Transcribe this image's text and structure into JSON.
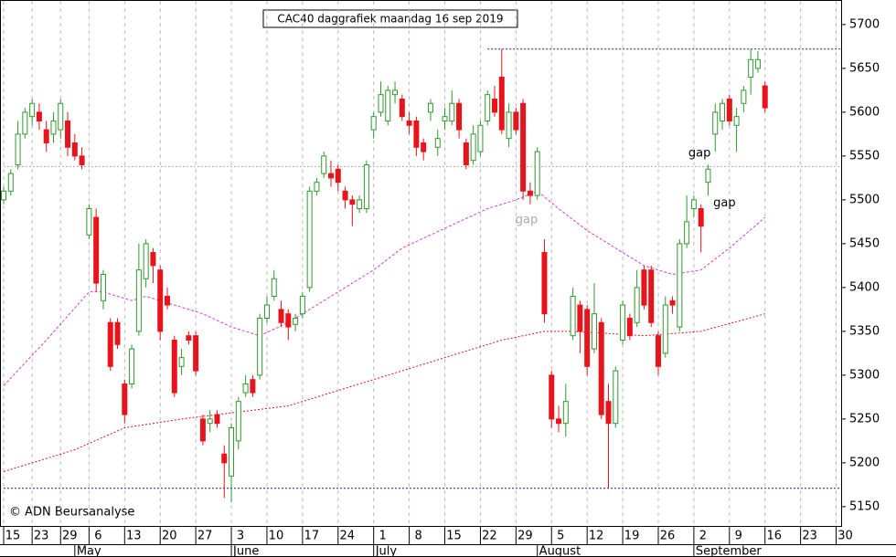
{
  "chart_data": {
    "type": "candlestick",
    "title": "CAC40 daggrafiek maandag 16 sep 2019",
    "credit": "© ADN Beursanalyse",
    "xlim": [
      0,
      117.7
    ],
    "ylim": [
      5128,
      5728
    ],
    "yticks": [
      5150,
      5200,
      5250,
      5300,
      5350,
      5400,
      5450,
      5500,
      5550,
      5600,
      5650,
      5700
    ],
    "xticks": [
      {
        "value": 0,
        "label": "15"
      },
      {
        "value": 4,
        "label": "23"
      },
      {
        "value": 8,
        "label": "29"
      },
      {
        "value": 12,
        "label": "6"
      },
      {
        "value": 17,
        "label": "13"
      },
      {
        "value": 22,
        "label": "20"
      },
      {
        "value": 27,
        "label": "27"
      },
      {
        "value": 32,
        "label": "3"
      },
      {
        "value": 37,
        "label": "10"
      },
      {
        "value": 42,
        "label": "17"
      },
      {
        "value": 47,
        "label": "24"
      },
      {
        "value": 52,
        "label": "1"
      },
      {
        "value": 57,
        "label": "8"
      },
      {
        "value": 62,
        "label": "15"
      },
      {
        "value": 67,
        "label": "22"
      },
      {
        "value": 72,
        "label": "29"
      },
      {
        "value": 77,
        "label": "5"
      },
      {
        "value": 82,
        "label": "12"
      },
      {
        "value": 87,
        "label": "19"
      },
      {
        "value": 92,
        "label": "26"
      },
      {
        "value": 97,
        "label": "2"
      },
      {
        "value": 102,
        "label": "9"
      },
      {
        "value": 107,
        "label": "16"
      },
      {
        "value": 112,
        "label": "23"
      },
      {
        "value": 117,
        "label": "30"
      }
    ],
    "months": [
      {
        "value": 10,
        "label": "May"
      },
      {
        "value": 32,
        "label": "June"
      },
      {
        "value": 52,
        "label": "July"
      },
      {
        "value": 75,
        "label": "August"
      },
      {
        "value": 97,
        "label": "September"
      }
    ],
    "x": [
      0,
      1,
      2,
      3,
      4,
      5,
      6,
      7,
      8,
      9,
      10,
      11,
      12,
      13,
      14,
      15,
      16,
      17,
      18,
      19,
      20,
      21,
      22,
      23,
      24,
      25,
      26,
      27,
      28,
      29,
      30,
      31,
      32,
      33,
      34,
      35,
      36,
      37,
      38,
      39,
      40,
      41,
      42,
      43,
      44,
      45,
      46,
      47,
      48,
      49,
      50,
      51,
      52,
      53,
      54,
      55,
      56,
      57,
      58,
      59,
      60,
      61,
      62,
      63,
      64,
      65,
      66,
      67,
      68,
      69,
      70,
      71,
      72,
      73,
      74,
      75,
      76,
      77,
      78,
      79,
      80,
      81,
      82,
      83,
      84,
      85,
      86,
      87,
      88,
      89,
      90,
      91,
      92,
      93,
      94,
      95,
      96,
      97,
      98,
      99,
      100,
      101,
      102,
      103,
      104,
      105,
      106,
      107
    ],
    "open": [
      5500,
      5510,
      5540,
      5575,
      5595,
      5600,
      5580,
      5575,
      5580,
      5590,
      5565,
      5550,
      5460,
      5480,
      5385,
      5360,
      5360,
      5290,
      5290,
      5350,
      5410,
      5440,
      5420,
      5390,
      5340,
      5310,
      5345,
      5345,
      5250,
      5245,
      5255,
      5210,
      5185,
      5225,
      5280,
      5295,
      5300,
      5365,
      5390,
      5375,
      5370,
      5358,
      5370,
      5400,
      5510,
      5530,
      5530,
      5535,
      5510,
      5500,
      5490,
      5490,
      5580,
      5600,
      5590,
      5620,
      5615,
      5590,
      5590,
      5565,
      5600,
      5560,
      5590,
      5590,
      5610,
      5565,
      5545,
      5555,
      5590,
      5615,
      5640,
      5570,
      5600,
      5610,
      5510,
      5505,
      5440,
      5300,
      5250,
      5245,
      5345,
      5380,
      5375,
      5330,
      5360,
      5270,
      5245,
      5340,
      5365,
      5360,
      5420,
      5420,
      5345,
      5325,
      5385,
      5355,
      5450,
      5490,
      5490,
      5520,
      5575,
      5590,
      5615,
      5585,
      5610,
      5640,
      5650,
      5630
    ],
    "high": [
      5515,
      5535,
      5590,
      5605,
      5615,
      5610,
      5590,
      5600,
      5615,
      5600,
      5575,
      5560,
      5495,
      5490,
      5420,
      5365,
      5365,
      5295,
      5335,
      5450,
      5455,
      5445,
      5425,
      5400,
      5345,
      5330,
      5350,
      5350,
      5255,
      5260,
      5260,
      5220,
      5245,
      5275,
      5300,
      5300,
      5370,
      5390,
      5420,
      5385,
      5375,
      5370,
      5395,
      5515,
      5525,
      5555,
      5545,
      5540,
      5515,
      5505,
      5505,
      5545,
      5600,
      5635,
      5630,
      5635,
      5620,
      5600,
      5595,
      5570,
      5615,
      5580,
      5605,
      5625,
      5615,
      5570,
      5585,
      5590,
      5625,
      5630,
      5672,
      5610,
      5605,
      5615,
      5520,
      5560,
      5455,
      5305,
      5265,
      5290,
      5400,
      5385,
      5380,
      5405,
      5365,
      5290,
      5310,
      5385,
      5370,
      5420,
      5425,
      5425,
      5350,
      5390,
      5390,
      5455,
      5505,
      5505,
      5495,
      5540,
      5610,
      5615,
      5620,
      5605,
      5630,
      5672,
      5670,
      5635
    ],
    "low": [
      5495,
      5505,
      5535,
      5570,
      5585,
      5580,
      5555,
      5565,
      5570,
      5550,
      5545,
      5535,
      5455,
      5395,
      5375,
      5305,
      5330,
      5245,
      5285,
      5345,
      5400,
      5405,
      5340,
      5375,
      5275,
      5300,
      5335,
      5300,
      5220,
      5235,
      5240,
      5160,
      5155,
      5215,
      5275,
      5275,
      5295,
      5360,
      5385,
      5355,
      5340,
      5350,
      5365,
      5395,
      5505,
      5525,
      5515,
      5510,
      5490,
      5470,
      5485,
      5485,
      5570,
      5595,
      5585,
      5610,
      5590,
      5575,
      5550,
      5545,
      5590,
      5550,
      5580,
      5585,
      5570,
      5535,
      5540,
      5550,
      5585,
      5595,
      5575,
      5560,
      5575,
      5500,
      5495,
      5500,
      5360,
      5240,
      5235,
      5230,
      5340,
      5325,
      5300,
      5325,
      5250,
      5171,
      5240,
      5335,
      5340,
      5355,
      5375,
      5355,
      5300,
      5320,
      5370,
      5350,
      5445,
      5480,
      5440,
      5505,
      5555,
      5580,
      5585,
      5555,
      5600,
      5620,
      5645,
      5600
    ],
    "close": [
      5510,
      5530,
      5575,
      5600,
      5610,
      5590,
      5565,
      5590,
      5610,
      5560,
      5550,
      5540,
      5490,
      5405,
      5415,
      5310,
      5335,
      5255,
      5330,
      5420,
      5450,
      5425,
      5350,
      5380,
      5280,
      5320,
      5340,
      5305,
      5225,
      5250,
      5245,
      5200,
      5240,
      5270,
      5290,
      5280,
      5365,
      5380,
      5410,
      5360,
      5355,
      5365,
      5390,
      5510,
      5520,
      5550,
      5525,
      5520,
      5500,
      5495,
      5500,
      5540,
      5595,
      5620,
      5625,
      5625,
      5595,
      5585,
      5560,
      5555,
      5610,
      5570,
      5595,
      5610,
      5580,
      5540,
      5575,
      5585,
      5620,
      5600,
      5580,
      5600,
      5580,
      5510,
      5505,
      5555,
      5370,
      5250,
      5245,
      5270,
      5390,
      5350,
      5310,
      5370,
      5255,
      5245,
      5305,
      5380,
      5345,
      5400,
      5380,
      5360,
      5310,
      5380,
      5380,
      5450,
      5475,
      5500,
      5470,
      5535,
      5600,
      5610,
      5590,
      5595,
      5625,
      5660,
      5660,
      5605
    ],
    "up_color": "#2e9a2e",
    "down_color": "#e8141c",
    "lines": [
      {
        "color": "#d040d0",
        "dash": "3,2",
        "x": [
          0,
          6,
          12,
          14,
          18,
          20,
          24,
          28,
          32,
          36,
          40,
          44,
          48,
          52,
          56,
          60,
          64,
          68,
          72,
          75,
          78,
          82,
          86,
          90,
          94,
          98,
          102,
          107
        ],
        "values": [
          5288,
          5340,
          5395,
          5395,
          5385,
          5390,
          5380,
          5370,
          5355,
          5345,
          5360,
          5380,
          5400,
          5420,
          5445,
          5460,
          5475,
          5490,
          5500,
          5510,
          5490,
          5465,
          5445,
          5425,
          5415,
          5420,
          5445,
          5480
        ]
      },
      {
        "color": "#d01818",
        "dash": "2,2",
        "x": [
          0,
          10,
          17,
          25,
          30,
          40,
          50,
          60,
          70,
          76,
          80,
          90,
          98,
          107
        ],
        "values": [
          5190,
          5215,
          5240,
          5250,
          5255,
          5265,
          5290,
          5315,
          5340,
          5350,
          5350,
          5345,
          5350,
          5370
        ]
      }
    ],
    "hlines": [
      {
        "value": 5672,
        "from": 68,
        "color": "#1a1a8c"
      },
      {
        "value": 5171,
        "from": 0,
        "color": "#1a1a8c"
      },
      {
        "value": 5538,
        "from": 0,
        "color": "#aaaaaa"
      }
    ],
    "annotations": [
      {
        "text": "gap",
        "x": 97.8,
        "y": 5553,
        "color": "#000000"
      },
      {
        "text": "gap",
        "x": 101.3,
        "y": 5496,
        "color": "#000000"
      },
      {
        "text": "gap",
        "x": 73.5,
        "y": 5477,
        "color": "#aaaaaa"
      }
    ]
  }
}
